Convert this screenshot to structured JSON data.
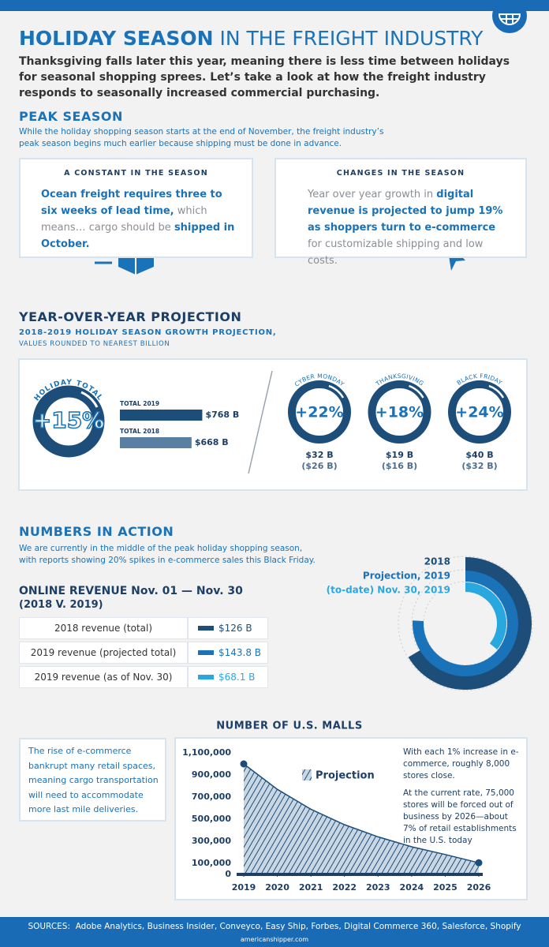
{
  "header": {
    "title_bold": "HOLIDAY SEASON",
    "title_rest": "IN THE FREIGHT INDUSTRY",
    "intro": "Thanksgiving falls later this year, meaning there is less time between holidays for seasonal shopping sprees. Let’s take a look at how the freight industry responds to seasonally increased commercial purchasing."
  },
  "peak_season": {
    "title": "PEAK SEASON",
    "text": "While the holiday shopping season starts at the end of November, the freight industry’s peak season begins much earlier because shipping must be done in advance.",
    "constant": {
      "title": "A CONSTANT IN THE SEASON",
      "parts": [
        {
          "text": "Ocean freight requires three to six weeks of lead time,",
          "highlight": true
        },
        {
          "text": " which means… cargo should be ",
          "highlight": false
        },
        {
          "text": "shipped in October.",
          "highlight": true
        }
      ]
    },
    "changes": {
      "title": "CHANGES IN THE SEASON",
      "parts": [
        {
          "text": "Year over year growth in ",
          "highlight": false
        },
        {
          "text": "digital revenue is projected to jump 19% as shoppers turn to e-commerce",
          "highlight": true
        },
        {
          "text": " for customizable shipping and low costs.",
          "highlight": false
        }
      ]
    }
  },
  "projection": {
    "title": "YEAR-OVER-YEAR PROJECTION",
    "subtitle": "2018-2019 HOLIDAY SEASON GROWTH PROJECTION,",
    "note": "VALUES ROUNDED TO NEAREST BILLION",
    "holiday_total": {
      "label": "HOLIDAY TOTAL",
      "change": "+15%",
      "chart": {
        "type": "bar",
        "categories": [
          "TOTAL 2019",
          "TOTAL 2018"
        ],
        "values": [
          768,
          668
        ],
        "value_labels": [
          "$768 B",
          "$668 B"
        ],
        "colors": [
          "#1d4e7a",
          "#5b7fa3"
        ]
      }
    },
    "days": [
      {
        "label": "CYBER MONDAY",
        "change": "+22%",
        "value_2019": "$32 B",
        "value_2018": "($26 B)"
      },
      {
        "label": "THANKSGIVING",
        "change": "+18%",
        "value_2019": "$19 B",
        "value_2018": "($16 B)"
      },
      {
        "label": "BLACK FRIDAY",
        "change": "+24%",
        "value_2019": "$40 B",
        "value_2018": "($32 B)"
      }
    ]
  },
  "numbers_in_action": {
    "title": "NUMBERS IN ACTION",
    "text": "We are currently in the middle of the peak holiday shopping season, with reports showing 20% spikes in e-commerce sales this Black Friday.",
    "table_title": "ONLINE REVENUE Nov. 01 — Nov. 30",
    "table_subtitle": "(2018 V. 2019)",
    "chart": {
      "type": "radial-bar",
      "categories": [
        "2018 revenue (total)",
        "2019 revenue (projected total)",
        "2019 revenue (as of Nov. 30)"
      ],
      "values": [
        126,
        143.8,
        68.1
      ],
      "value_labels": [
        "$126 B",
        "$143.8 B",
        "$68.1 B"
      ],
      "colors": [
        "#1d4e7a",
        "#1a72b8",
        "#29a8e0"
      ],
      "legend": [
        "2018",
        "Projection, 2019",
        "(to-date) Nov. 30, 2019"
      ]
    }
  },
  "malls": {
    "side_text": "The rise of e-commerce bankrupt many retail spaces, meaning cargo transportation will need to accommodate more last mile deliveries.",
    "notes": [
      "With each 1% increase in e-commerce, roughly 8,000 stores close.",
      "At the current rate, 75,000 stores will be forced out of business by 2026—about 7% of retail establishments in the U.S. today"
    ],
    "chart": {
      "type": "area",
      "title": "NUMBER OF U.S. MALLS",
      "legend": "Projection",
      "color": "#1d4e7a",
      "x": [
        2019,
        2020,
        2021,
        2022,
        2023,
        2024,
        2025,
        2026
      ],
      "values": [
        1000000,
        770000,
        590000,
        450000,
        340000,
        250000,
        180000,
        105000
      ],
      "xlim": [
        2019,
        2026
      ],
      "xticks": [
        2019,
        2020,
        2021,
        2022,
        2023,
        2024,
        2025,
        2026
      ],
      "ylim": [
        0,
        1100000
      ],
      "yticks": [
        0,
        {
          "value": 100000,
          "label": "100,000"
        },
        {
          "value": 300000,
          "label": "300,000"
        },
        {
          "value": 500000,
          "label": "500,000"
        },
        {
          "value": 700000,
          "label": "700,000"
        },
        {
          "value": 900000,
          "label": "900,000"
        },
        {
          "value": 1100000,
          "label": "1,100,000"
        }
      ]
    }
  },
  "footer": {
    "sources_label": "SOURCES:",
    "sources": "Adobe Analytics, Business Insider, Conveyco, Easy Ship, Forbes, Digital Commerce 360, Salesforce, Shopify",
    "site": "americanshipper.com"
  }
}
